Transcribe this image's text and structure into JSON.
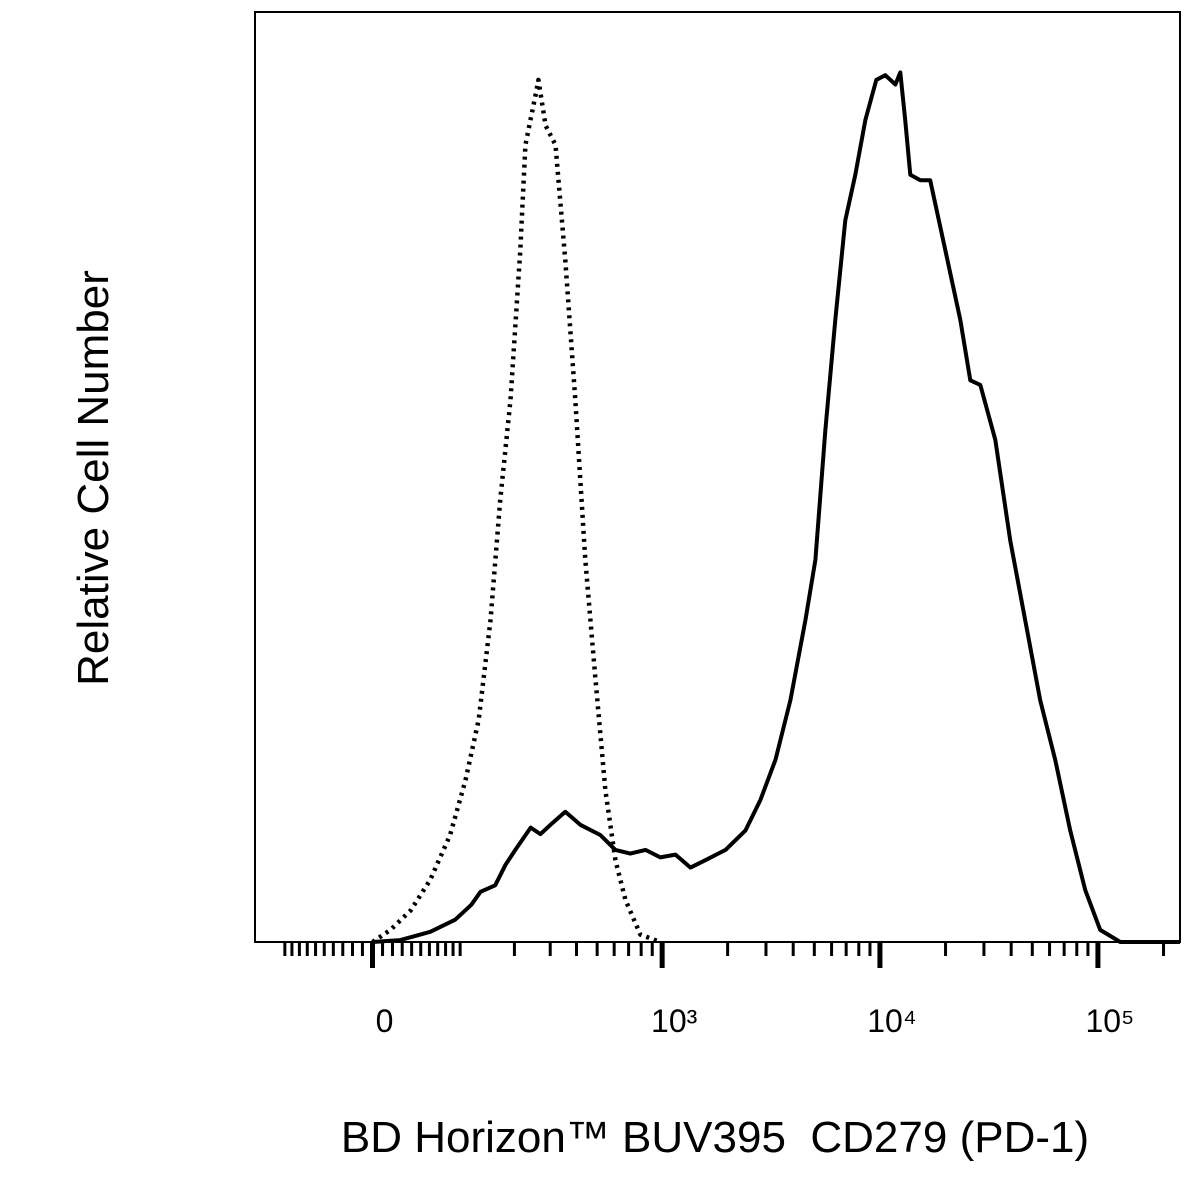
{
  "chart_data": {
    "type": "line",
    "x_label": "BD Horizon™ BUV395  CD279 (PD-1)",
    "y_label": "Relative Cell Number",
    "x_scale": {
      "type": "biexponential",
      "linear_width": 94
    },
    "xlim": [
      -149,
      238000
    ],
    "ylim": [
      0,
      100
    ],
    "xticks": [
      0,
      {
        "value": 1000,
        "label": "10³"
      },
      {
        "value": 10000,
        "label": "10⁴"
      },
      {
        "value": 100000,
        "label": "10⁵"
      }
    ],
    "xminorticks": [
      -100,
      -90,
      -80,
      -70,
      -60,
      -50,
      -40,
      -30,
      -20,
      -10,
      10,
      20,
      30,
      40,
      50,
      60,
      70,
      80,
      90,
      100,
      200,
      300,
      400,
      500,
      600,
      700,
      800,
      900,
      2000,
      3000,
      4000,
      5000,
      6000,
      7000,
      8000,
      9000,
      20000,
      30000,
      40000,
      50000,
      60000,
      70000,
      80000,
      90000,
      200000
    ],
    "series": [
      {
        "color": "#000000",
        "dash": "solid",
        "x": [
          0,
          28,
          61,
          93,
          117,
          132,
          159,
          180,
          202,
          241,
          269,
          301,
          354,
          417,
          517,
          608,
          713,
          838,
          981,
          1152,
          1350,
          1581,
          1955,
          2416,
          2830,
          3318,
          3882,
          4550,
          5057,
          5621,
          6242,
          6937,
          7708,
          8573,
          9626,
          10584,
          11769,
          12399,
          13066,
          13780,
          15313,
          17014,
          19937,
          23368,
          25963,
          28858,
          33812,
          39612,
          46398,
          54379,
          63694,
          74645,
          87439,
          102460,
          126618,
          238000
        ],
        "values": [
          0,
          0.2,
          1.1,
          2.4,
          4.0,
          5.4,
          6.1,
          8.3,
          9.9,
          12.3,
          11.6,
          12.6,
          14.0,
          12.6,
          11.5,
          9.9,
          9.5,
          9.9,
          9.1,
          9.4,
          8.0,
          8.8,
          9.9,
          12.0,
          15.3,
          19.6,
          26.0,
          34.6,
          41.1,
          55.1,
          66.9,
          77.6,
          82.5,
          88.4,
          92.7,
          93.2,
          92.2,
          93.5,
          88.4,
          82.5,
          81.9,
          81.9,
          74.4,
          66.9,
          60.4,
          59.9,
          54.0,
          43.2,
          34.6,
          26.0,
          19.6,
          12.0,
          5.6,
          1.3,
          0,
          0
        ]
      },
      {
        "color": "#000000",
        "dash": "dotted",
        "x": [
          0,
          18,
          39,
          61,
          86,
          108,
          129,
          150,
          169,
          191,
          214,
          227,
          255,
          263,
          285,
          318,
          354,
          395,
          440,
          491,
          546,
          608,
          677,
          794,
          981
        ],
        "values": [
          0,
          1.3,
          3.4,
          6.7,
          11.5,
          17.4,
          23.9,
          34.6,
          47.5,
          58.3,
          74.4,
          85.7,
          91.1,
          92.7,
          87.8,
          85.7,
          73.3,
          58.3,
          41.1,
          28.2,
          16.3,
          8.8,
          4.5,
          0.8,
          0
        ]
      }
    ]
  }
}
